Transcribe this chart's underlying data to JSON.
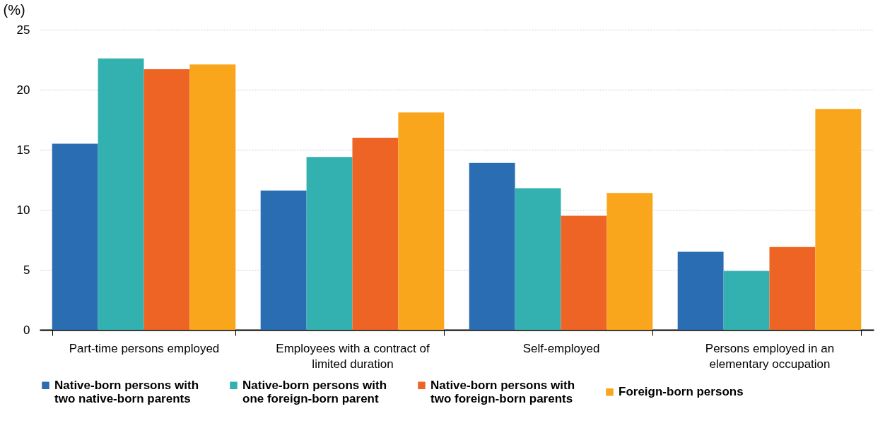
{
  "chart_data": {
    "type": "bar",
    "ylabel": "(%)",
    "categories": [
      "Part-time persons employed",
      "Employees with a contract of limited duration",
      "Self-employed",
      "Persons employed in an elementary occupation"
    ],
    "series": [
      {
        "name": "Native-born persons with two native-born parents",
        "color": "#2a6db3",
        "values": [
          15.5,
          11.6,
          13.9,
          6.5
        ]
      },
      {
        "name": "Native-born persons with one foreign-born parent",
        "color": "#33b0b0",
        "values": [
          22.6,
          14.4,
          11.8,
          4.9
        ]
      },
      {
        "name": "Native-born persons with two foreign-born parents",
        "color": "#ee6424",
        "values": [
          21.7,
          16.0,
          9.5,
          6.9
        ]
      },
      {
        "name": "Foreign-born persons",
        "color": "#f9a61c",
        "values": [
          22.1,
          18.1,
          11.4,
          18.4
        ]
      }
    ],
    "ylim": [
      0,
      25
    ],
    "yticks": [
      0,
      5,
      10,
      15,
      20,
      25
    ],
    "grid": "y",
    "legend": "bottom"
  }
}
